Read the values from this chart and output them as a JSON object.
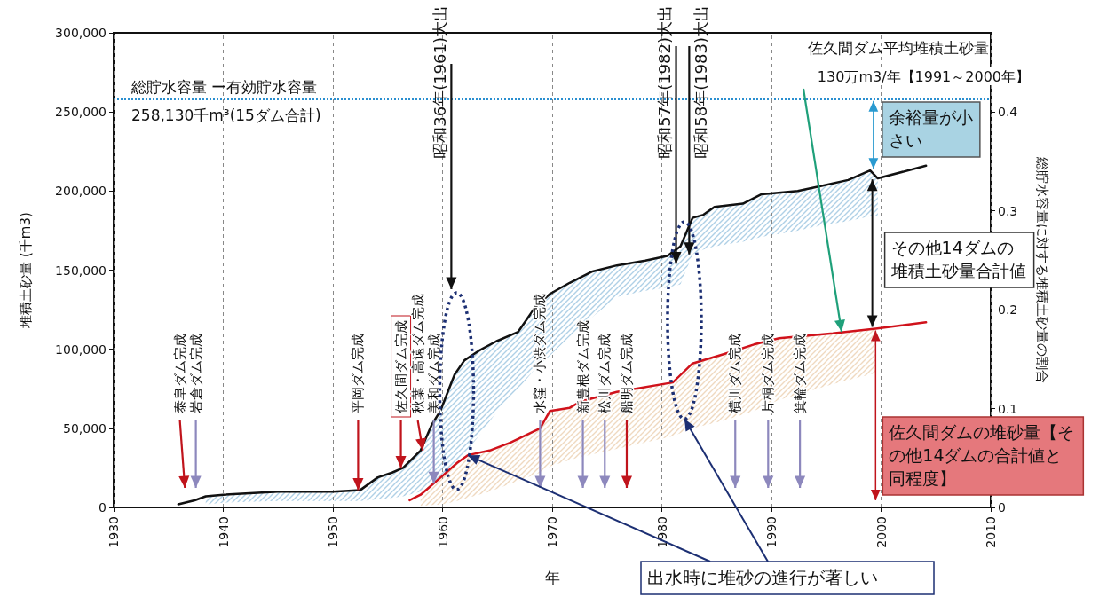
{
  "chart_data": {
    "type": "line",
    "xlabel": "年",
    "ylabel": "堆積土砂量 (千m3)",
    "y2label": "総貯水容量に対する堆積土砂量の割合",
    "xlim": [
      1930,
      2010
    ],
    "xticks": [
      1930,
      1940,
      1950,
      1960,
      1970,
      1980,
      1990,
      2000,
      2010
    ],
    "ylim": [
      0,
      300000
    ],
    "yticks": [
      0,
      {
        "value": 50000,
        "label": "50,000"
      },
      {
        "value": 100000,
        "label": "100,000"
      },
      {
        "value": 150000,
        "label": "150,000"
      },
      {
        "value": 200000,
        "label": "200,000"
      },
      {
        "value": 250000,
        "label": "250,000"
      },
      {
        "value": 300000,
        "label": "300,000"
      }
    ],
    "y2lim": [
      0,
      0.48
    ],
    "y2ticks": [
      0,
      0.1,
      0.2,
      0.3,
      0.4
    ],
    "grid": "x",
    "marker": "none",
    "line_style": "solid",
    "series": [
      {
        "color": "#111111",
        "x": [
          1935.9,
          1937.4,
          1938.4,
          1940,
          1945,
          1950,
          1952.5,
          1954.1,
          1955.4,
          1956.4,
          1958,
          1959,
          1959.8,
          1961.1,
          1962,
          1963.3,
          1964.9,
          1966.9,
          1968.5,
          1969.8,
          1971.6,
          1973.6,
          1975.9,
          1978.5,
          1980.5,
          1981.7,
          1982.8,
          1983.8,
          1984.8,
          1987.4,
          1989.1,
          1992.4,
          1994.4,
          1997,
          1999,
          1999.7,
          2004.1
        ],
        "values": [
          2000,
          4500,
          7000,
          8000,
          10000,
          10000,
          11000,
          19000,
          22000,
          25000,
          36000,
          52000,
          61000,
          84000,
          93000,
          99000,
          105000,
          111000,
          127000,
          135000,
          142000,
          149000,
          153000,
          156000,
          159000,
          165000,
          183000,
          185000,
          190000,
          192000,
          198000,
          200000,
          203000,
          207000,
          213000,
          208000,
          216000
        ],
        "lower": [
          null,
          null,
          2000,
          3000,
          4000,
          4000,
          4000,
          5000,
          6000,
          7000,
          10000,
          14000,
          18000,
          27000,
          34000,
          45000,
          60000,
          75000,
          88000,
          96000,
          108000,
          120000,
          133000,
          137000,
          139000,
          141000,
          160000,
          163000,
          165000,
          168000,
          171000,
          175000,
          178000,
          181000,
          184000,
          184000,
          null
        ],
        "upper": [
          null,
          null,
          7000,
          8000,
          10000,
          10000,
          11000,
          19000,
          22000,
          25000,
          36000,
          52000,
          61000,
          84000,
          93000,
          99000,
          105000,
          111000,
          127000,
          135000,
          142000,
          149000,
          153000,
          156000,
          159000,
          165000,
          183000,
          185000,
          190000,
          192000,
          198000,
          200000,
          203000,
          207000,
          213000,
          208000,
          null
        ]
      },
      {
        "color": "#d0121b",
        "x": [
          1957,
          1958,
          1960,
          1961.3,
          1962.3,
          1964.3,
          1966.2,
          1968.9,
          1969.8,
          1971.6,
          1972.6,
          1975.9,
          1981,
          1982.8,
          1985.7,
          1988.4,
          1990.7,
          1995.6,
          1999.5,
          2004.1
        ],
        "values": [
          4500,
          8000,
          20000,
          28000,
          33000,
          36000,
          41000,
          50000,
          61000,
          63000,
          67000,
          73000,
          79000,
          91000,
          97000,
          103000,
          107000,
          110000,
          113000,
          117000
        ],
        "lower": [
          null,
          1000,
          2000,
          4000,
          6000,
          10000,
          15000,
          22000,
          26000,
          30000,
          32000,
          37000,
          45000,
          50000,
          55000,
          61000,
          68000,
          78000,
          85000,
          null
        ],
        "upper": [
          null,
          8000,
          20000,
          28000,
          33000,
          36000,
          41000,
          50000,
          61000,
          63000,
          67000,
          73000,
          79000,
          91000,
          97000,
          103000,
          107000,
          110000,
          113000,
          null
        ]
      }
    ],
    "ref_lines": [
      {
        "axis": "y",
        "value": 258130,
        "label": "総貯水容量 ー有効貯水容量",
        "color": "#2a8fd0",
        "line_style": "dotted"
      }
    ],
    "annotations": [
      "泰阜ダム完成",
      "岩倉ダム完成",
      {
        "text": "平岡ダム完成",
        "x": 1952.3,
        "y": 11000
      },
      {
        "text": "佐久間ダム完成",
        "x": 1956.2,
        "y": 25000
      },
      {
        "text": "秋葉・高遠ダム完成",
        "x": 1958.2,
        "y": 36000
      },
      {
        "text": "美和ダム完成",
        "x": 1959.2,
        "y": 15000
      },
      "水窪・小渋ダム完成",
      "新豊根ダム完成",
      "松川ダム完成",
      "船明ダム完成",
      "横川ダム完成",
      "片桐ダム完成",
      "箕輪ダム完成",
      "昭和36年(1961)大出",
      "昭和57年(1982)大出",
      {
        "text": "昭和58年(1983)大出",
        "x": 1982.5,
        "y": 160000
      },
      "佐久間ダム平均堆積土砂量",
      {
        "text": "130万m3/年【1991～2000年】",
        "x": 1996.4,
        "y": 111000
      },
      {
        "text": "余裕量が小さい",
        "x": 1999.3,
        "y": 258130
      },
      "その他14ダムの堆積土砂量合計値",
      {
        "text": "佐久間ダムの堆砂量【その他14ダムの合計値と同程度】",
        "x": 1999.5,
        "y": 113000
      },
      {
        "text": "出水時に堆砂の進行が著しい",
        "x": 1962.3,
        "y": 33000
      },
      "258,130千m³(15ダム合計)"
    ]
  }
}
